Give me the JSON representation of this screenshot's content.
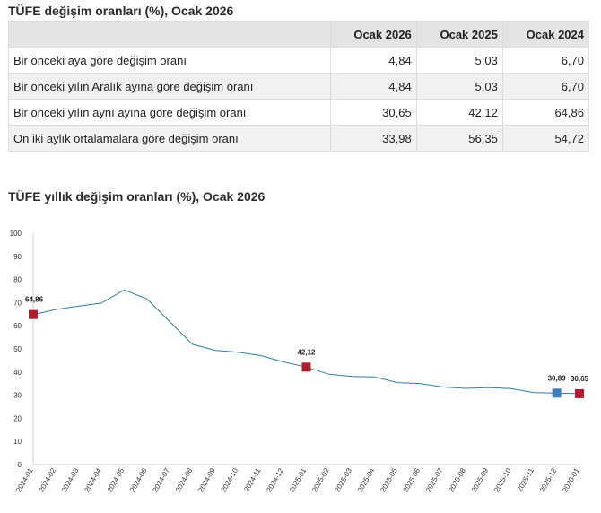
{
  "table": {
    "title": "TÜFE değişim oranları (%), Ocak 2026",
    "headers": [
      "",
      "Ocak 2026",
      "Ocak 2025",
      "Ocak 2024"
    ],
    "rows": [
      {
        "label": "Bir önceki aya göre değişim oranı",
        "values": [
          "4,84",
          "5,03",
          "6,70"
        ]
      },
      {
        "label": "Bir önceki yılın Aralık ayına göre değişim oranı",
        "values": [
          "4,84",
          "5,03",
          "6,70"
        ]
      },
      {
        "label": "Bir önceki yılın aynı ayına göre değişim oranı",
        "values": [
          "30,65",
          "42,12",
          "64,86"
        ]
      },
      {
        "label": "On iki aylık ortalamalara göre değişim oranı",
        "values": [
          "33,98",
          "56,35",
          "54,72"
        ]
      }
    ]
  },
  "chart_data": {
    "type": "line",
    "title": "TÜFE yıllık değişim oranları (%), Ocak 2026",
    "xlabel": "",
    "ylabel": "",
    "ylim": [
      0,
      100
    ],
    "yticks": [
      0,
      10,
      20,
      30,
      40,
      50,
      60,
      70,
      80,
      90,
      100
    ],
    "grid": false,
    "x": [
      "2024-01",
      "2024-02",
      "2024-03",
      "2024-04",
      "2024-05",
      "2024-06",
      "2024-07",
      "2024-08",
      "2024-09",
      "2024-10",
      "2024-11",
      "2024-12",
      "2025-01",
      "2025-02",
      "2025-03",
      "2025-04",
      "2025-05",
      "2025-06",
      "2025-07",
      "2025-08",
      "2025-09",
      "2025-10",
      "2025-11",
      "2025-12",
      "2026-01"
    ],
    "series": [
      {
        "values": [
          64.86,
          67.07,
          68.5,
          69.8,
          75.45,
          71.6,
          61.78,
          51.97,
          49.38,
          48.58,
          47.09,
          44.38,
          42.12,
          39.05,
          38.1,
          37.86,
          35.41,
          35.05,
          33.52,
          32.95,
          33.29,
          32.87,
          31.07,
          30.89,
          30.65
        ],
        "color": "#2f7ea0"
      }
    ],
    "markers": [
      {
        "x": "2024-01",
        "value": 64.86,
        "label": "64,86",
        "color": "#b01c2e"
      },
      {
        "x": "2025-01",
        "value": 42.12,
        "label": "42,12",
        "color": "#b01c2e"
      },
      {
        "x": "2025-12",
        "value": 30.89,
        "label": "30,89",
        "color": "#3a7fbf"
      },
      {
        "x": "2026-01",
        "value": 30.65,
        "label": "30,65",
        "color": "#b01c2e"
      }
    ]
  }
}
